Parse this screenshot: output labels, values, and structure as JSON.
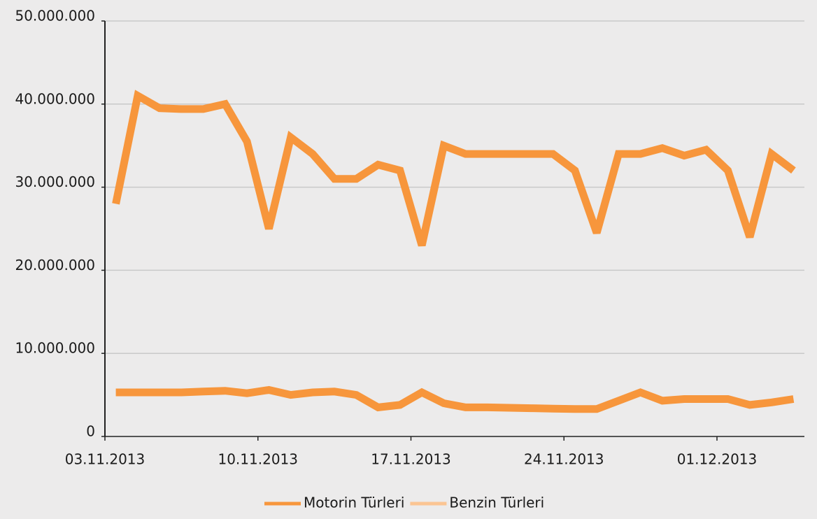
{
  "chart_data": {
    "type": "line",
    "categories": [
      "03.11.2013",
      null,
      null,
      null,
      null,
      null,
      null,
      "10.11.2013",
      null,
      null,
      null,
      null,
      null,
      null,
      "17.11.2013",
      null,
      null,
      null,
      null,
      null,
      null,
      "24.11.2013",
      null,
      null,
      null,
      null,
      null,
      null,
      "01.12.2013",
      null,
      null,
      null
    ],
    "series": [
      {
        "name": "Motorin Türleri",
        "color": "#f7963c",
        "swatch_color": "#f7963c",
        "values": [
          28000000,
          41000000,
          39500000,
          39400000,
          39400000,
          40000000,
          35500000,
          25000000,
          36000000,
          34000000,
          31000000,
          31000000,
          32700000,
          32000000,
          23000000,
          35000000,
          34000000,
          34000000,
          34000000,
          34000000,
          34000000,
          32000000,
          24500000,
          34000000,
          34000000,
          34700000,
          33800000,
          34500000,
          32000000,
          24000000,
          34000000,
          32000000
        ]
      },
      {
        "name": "Benzin Türleri",
        "color": "#f7963c",
        "swatch_color": "#fbc593",
        "values": [
          5300000,
          5300000,
          5300000,
          5300000,
          5400000,
          5500000,
          5200000,
          5600000,
          5000000,
          5300000,
          5400000,
          5000000,
          3500000,
          3800000,
          5300000,
          4000000,
          3500000,
          3500000,
          3450000,
          3400000,
          3350000,
          3300000,
          3300000,
          4300000,
          5300000,
          4300000,
          4500000,
          4500000,
          4500000,
          3800000,
          4100000,
          4500000
        ]
      }
    ],
    "ylim": [
      0,
      50000000
    ],
    "yticks": [
      0,
      {
        "value": 10000000,
        "label": "10.000.000"
      },
      {
        "value": 20000000,
        "label": "20.000.000"
      },
      {
        "value": 30000000,
        "label": "30.000.000"
      },
      {
        "value": 40000000,
        "label": "40.000.000"
      },
      {
        "value": 50000000,
        "label": "50.000.000"
      }
    ],
    "grid": true
  }
}
